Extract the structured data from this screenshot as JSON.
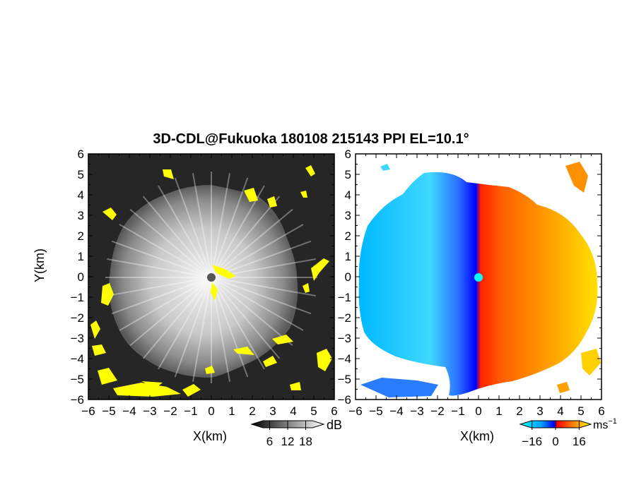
{
  "figure": {
    "title": "3D-CDL@Fukuoka 180108 215143 PPI EL=10.1°"
  },
  "chart_data": [
    {
      "type": "heatmap",
      "panel": "left",
      "field": "reflectivity (grayscale) with yellow flagged echoes",
      "xlabel": "X(km)",
      "ylabel": "Y(km)",
      "xlim": [
        -6,
        6
      ],
      "ylim": [
        -6,
        6
      ],
      "xticks": [
        -6,
        -5,
        -4,
        -3,
        -2,
        -1,
        0,
        1,
        2,
        3,
        4,
        5,
        6
      ],
      "yticks": [
        -6,
        -5,
        -4,
        -3,
        -2,
        -1,
        0,
        1,
        2,
        3,
        4,
        5,
        6
      ],
      "colorbar": {
        "unit": "dB",
        "ticks": [
          6,
          12,
          18
        ],
        "range": [
          0,
          24
        ]
      },
      "colors": {
        "background": "#222222",
        "echo": "#cfcfcf",
        "flag": "#ffff00",
        "center": "#555555"
      }
    },
    {
      "type": "heatmap",
      "panel": "right",
      "field": "Doppler radial velocity",
      "xlabel": "X(km)",
      "ylabel": "",
      "xlim": [
        -6,
        6
      ],
      "ylim": [
        -6,
        6
      ],
      "xticks": [
        -6,
        -5,
        -4,
        -3,
        -2,
        -1,
        0,
        1,
        2,
        3,
        4,
        5,
        6
      ],
      "yticks": [
        -6,
        -5,
        -4,
        -3,
        -2,
        -1,
        0,
        1,
        2,
        3,
        4,
        5,
        6
      ],
      "colorbar": {
        "unit": "ms",
        "unit_sup": "−1",
        "ticks": [
          -16,
          0,
          16
        ],
        "range": [
          -24,
          24
        ]
      },
      "colors": {
        "negative": "#00a0ff",
        "near_zero_neg": "#0000ff",
        "near_zero_pos": "#ff2000",
        "positive": "#ffd000",
        "center": "#00ffff"
      }
    }
  ]
}
